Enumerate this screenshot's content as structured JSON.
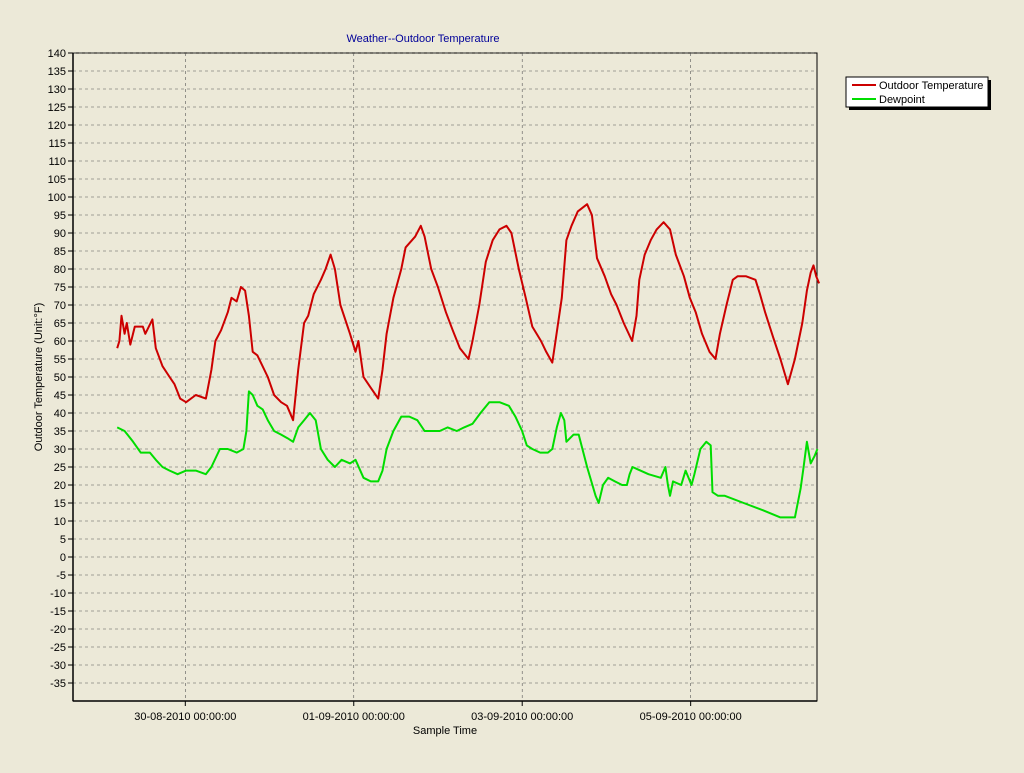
{
  "chart_data": {
    "type": "line",
    "title": "Weather--Outdoor Temperature",
    "xlabel": "Sample Time",
    "ylabel": "Outdoor Temperature (Unit:°F)",
    "ylim": [
      -40,
      140
    ],
    "xlim": [
      "2010-08-28 16:00",
      "2010-09-06 12:00"
    ],
    "y_ticks": [
      140,
      135,
      130,
      125,
      120,
      115,
      110,
      105,
      100,
      95,
      90,
      85,
      80,
      75,
      70,
      65,
      60,
      55,
      50,
      45,
      40,
      35,
      30,
      25,
      20,
      15,
      10,
      5,
      0,
      -5,
      -10,
      -15,
      -20,
      -25,
      -30,
      -35
    ],
    "x_ticks": [
      {
        "x": "2010-08-30 00:00",
        "label": "30-08-2010 00:00:00"
      },
      {
        "x": "2010-09-01 00:00",
        "label": "01-09-2010 00:00:00"
      },
      {
        "x": "2010-09-03 00:00",
        "label": "03-09-2010 00:00:00"
      },
      {
        "x": "2010-09-05 00:00",
        "label": "05-09-2010 00:00:00"
      }
    ],
    "grid": true,
    "legend_position": "top-right",
    "series": [
      {
        "name": "Outdoor Temperature",
        "color": "#cc0000",
        "points": [
          [
            "2010-08-29 04:36",
            58
          ],
          [
            "2010-08-29 05:14",
            60
          ],
          [
            "2010-08-29 05:50",
            67
          ],
          [
            "2010-08-29 06:43",
            62
          ],
          [
            "2010-08-29 07:19",
            65
          ],
          [
            "2010-08-29 08:20",
            59
          ],
          [
            "2010-08-29 09:36",
            64
          ],
          [
            "2010-08-29 11:53",
            64
          ],
          [
            "2010-08-29 12:36",
            62
          ],
          [
            "2010-08-29 14:38",
            66
          ],
          [
            "2010-08-29 15:36",
            58
          ],
          [
            "2010-08-29 17:31",
            53
          ],
          [
            "2010-08-29 19:31",
            50
          ],
          [
            "2010-08-29 20:55",
            48
          ],
          [
            "2010-08-29 22:33",
            44
          ],
          [
            "2010-08-30 00:14",
            43
          ],
          [
            "2010-08-30 03:00",
            45
          ],
          [
            "2010-08-30 05:53",
            44
          ],
          [
            "2010-08-30 07:26",
            52
          ],
          [
            "2010-08-30 08:34",
            60
          ],
          [
            "2010-08-30 10:12",
            63
          ],
          [
            "2010-08-30 12:07",
            68
          ],
          [
            "2010-08-30 13:09",
            72
          ],
          [
            "2010-08-30 14:38",
            71
          ],
          [
            "2010-08-30 15:50",
            75
          ],
          [
            "2010-08-30 17:03",
            74
          ],
          [
            "2010-08-30 18:07",
            67
          ],
          [
            "2010-08-30 19:12",
            57
          ],
          [
            "2010-08-30 20:33",
            56
          ],
          [
            "2010-08-30 23:31",
            50
          ],
          [
            "2010-08-31 01:19",
            45
          ],
          [
            "2010-08-31 03:17",
            43
          ],
          [
            "2010-08-31 04:59",
            42
          ],
          [
            "2010-08-31 06:43",
            38
          ],
          [
            "2010-08-31 08:11",
            52
          ],
          [
            "2010-08-31 09:51",
            65
          ],
          [
            "2010-08-31 11:01",
            67
          ],
          [
            "2010-08-31 12:36",
            73
          ],
          [
            "2010-08-31 14:38",
            77
          ],
          [
            "2010-08-31 15:58",
            80
          ],
          [
            "2010-08-31 17:24",
            84
          ],
          [
            "2010-08-31 18:38",
            80
          ],
          [
            "2010-08-31 20:12",
            70
          ],
          [
            "2010-08-31 22:55",
            62
          ],
          [
            "2010-09-01 00:29",
            57
          ],
          [
            "2010-09-01 01:19",
            60
          ],
          [
            "2010-09-01 02:46",
            50
          ],
          [
            "2010-09-01 04:51",
            47
          ],
          [
            "2010-09-01 06:58",
            44
          ],
          [
            "2010-09-01 08:11",
            52
          ],
          [
            "2010-09-01 09:22",
            62
          ],
          [
            "2010-09-01 11:17",
            72
          ],
          [
            "2010-09-01 13:33",
            80
          ],
          [
            "2010-09-01 14:46",
            86
          ],
          [
            "2010-09-01 17:31",
            89
          ],
          [
            "2010-09-01 19:06",
            92
          ],
          [
            "2010-09-01 20:12",
            89
          ],
          [
            "2010-09-01 22:04",
            80
          ],
          [
            "2010-09-01 23:58",
            75
          ],
          [
            "2010-09-02 02:16",
            68
          ],
          [
            "2010-09-02 04:12",
            63
          ],
          [
            "2010-09-02 06:14",
            58
          ],
          [
            "2010-09-02 08:42",
            55
          ],
          [
            "2010-09-02 09:51",
            60
          ],
          [
            "2010-09-02 11:46",
            70
          ],
          [
            "2010-09-02 13:38",
            82
          ],
          [
            "2010-09-02 15:36",
            88
          ],
          [
            "2010-09-02 17:31",
            91
          ],
          [
            "2010-09-02 19:31",
            92
          ],
          [
            "2010-09-02 20:55",
            90
          ],
          [
            "2010-09-02 23:02",
            80
          ],
          [
            "2010-09-03 00:59",
            72
          ],
          [
            "2010-09-03 02:53",
            64
          ],
          [
            "2010-09-03 05:22",
            60
          ],
          [
            "2010-09-03 06:50",
            57
          ],
          [
            "2010-09-03 08:34",
            54
          ],
          [
            "2010-09-03 09:29",
            60
          ],
          [
            "2010-09-03 11:17",
            72
          ],
          [
            "2010-09-03 12:36",
            88
          ],
          [
            "2010-09-03 14:02",
            92
          ],
          [
            "2010-09-03 15:50",
            96
          ],
          [
            "2010-09-03 18:29",
            98
          ],
          [
            "2010-09-03 19:51",
            95
          ],
          [
            "2010-09-03 21:19",
            83
          ],
          [
            "2010-09-03 23:31",
            78
          ],
          [
            "2010-09-04 01:19",
            73
          ],
          [
            "2010-09-04 02:53",
            70
          ],
          [
            "2010-09-04 04:56",
            65
          ],
          [
            "2010-09-04 07:19",
            60
          ],
          [
            "2010-09-04 08:34",
            67
          ],
          [
            "2010-09-04 09:22",
            77
          ],
          [
            "2010-09-04 10:54",
            84
          ],
          [
            "2010-09-04 12:36",
            88
          ],
          [
            "2010-09-04 14:20",
            91
          ],
          [
            "2010-09-04 16:17",
            93
          ],
          [
            "2010-09-04 18:07",
            91
          ],
          [
            "2010-09-04 19:46",
            84
          ],
          [
            "2010-09-04 22:04",
            78
          ],
          [
            "2010-09-04 23:46",
            72
          ],
          [
            "2010-09-05 01:26",
            68
          ],
          [
            "2010-09-05 03:14",
            62
          ],
          [
            "2010-09-05 05:22",
            57
          ],
          [
            "2010-09-05 07:05",
            55
          ],
          [
            "2010-09-05 08:20",
            62
          ],
          [
            "2010-09-05 10:12",
            70
          ],
          [
            "2010-09-05 12:00",
            77
          ],
          [
            "2010-09-05 13:24",
            78
          ],
          [
            "2010-09-05 15:43",
            78
          ],
          [
            "2010-09-05 18:29",
            77
          ],
          [
            "2010-09-05 19:46",
            73
          ],
          [
            "2010-09-05 21:12",
            68
          ],
          [
            "2010-09-05 23:31",
            61
          ],
          [
            "2010-09-06 01:34",
            55
          ],
          [
            "2010-09-06 03:43",
            48
          ],
          [
            "2010-09-06 05:43",
            55
          ],
          [
            "2010-09-06 07:48",
            65
          ],
          [
            "2010-09-06 09:07",
            74
          ],
          [
            "2010-09-06 10:12",
            79
          ],
          [
            "2010-09-06 11:01",
            81
          ],
          [
            "2010-09-06 11:46",
            78
          ],
          [
            "2010-09-06 12:36",
            76
          ]
        ]
      },
      {
        "name": "Dewpoint",
        "color": "#00dd00",
        "points": [
          [
            "2010-08-29 04:36",
            36
          ],
          [
            "2010-08-29 06:43",
            35
          ],
          [
            "2010-08-29 09:07",
            32
          ],
          [
            "2010-08-29 11:17",
            29
          ],
          [
            "2010-08-29 13:55",
            29
          ],
          [
            "2010-08-29 15:36",
            27
          ],
          [
            "2010-08-29 17:31",
            25
          ],
          [
            "2010-08-29 19:31",
            24
          ],
          [
            "2010-08-29 21:48",
            23
          ],
          [
            "2010-08-30 00:14",
            24
          ],
          [
            "2010-08-30 03:00",
            24
          ],
          [
            "2010-08-30 05:50",
            23
          ],
          [
            "2010-08-30 07:26",
            25
          ],
          [
            "2010-08-30 09:51",
            30
          ],
          [
            "2010-08-30 12:07",
            30
          ],
          [
            "2010-08-30 14:38",
            29
          ],
          [
            "2010-08-30 16:34",
            30
          ],
          [
            "2010-08-30 17:24",
            35
          ],
          [
            "2010-08-30 18:07",
            46
          ],
          [
            "2010-08-30 19:12",
            45
          ],
          [
            "2010-08-30 20:33",
            42
          ],
          [
            "2010-08-30 22:04",
            41
          ],
          [
            "2010-08-30 23:31",
            38
          ],
          [
            "2010-08-31 01:19",
            35
          ],
          [
            "2010-08-31 03:17",
            34
          ],
          [
            "2010-08-31 05:07",
            33
          ],
          [
            "2010-08-31 06:43",
            32
          ],
          [
            "2010-08-31 08:11",
            36
          ],
          [
            "2010-08-31 09:51",
            38
          ],
          [
            "2010-08-31 11:30",
            40
          ],
          [
            "2010-08-31 13:09",
            38
          ],
          [
            "2010-08-31 14:38",
            30
          ],
          [
            "2010-08-31 16:34",
            27
          ],
          [
            "2010-08-31 18:38",
            25
          ],
          [
            "2010-08-31 20:33",
            27
          ],
          [
            "2010-08-31 22:55",
            26
          ],
          [
            "2010-09-01 00:29",
            27
          ],
          [
            "2010-09-01 02:46",
            22
          ],
          [
            "2010-09-01 04:51",
            21
          ],
          [
            "2010-09-01 06:58",
            21
          ],
          [
            "2010-09-01 08:11",
            24
          ],
          [
            "2010-09-01 09:22",
            30
          ],
          [
            "2010-09-01 11:17",
            35
          ],
          [
            "2010-09-01 13:33",
            39
          ],
          [
            "2010-09-01 15:50",
            39
          ],
          [
            "2010-09-01 18:07",
            38
          ],
          [
            "2010-09-01 20:12",
            35
          ],
          [
            "2010-09-01 22:04",
            35
          ],
          [
            "2010-09-02 00:29",
            35
          ],
          [
            "2010-09-02 02:46",
            36
          ],
          [
            "2010-09-02 05:22",
            35
          ],
          [
            "2010-09-02 07:26",
            36
          ],
          [
            "2010-09-02 09:51",
            37
          ],
          [
            "2010-09-02 12:07",
            40
          ],
          [
            "2010-09-02 14:38",
            43
          ],
          [
            "2010-09-02 17:31",
            43
          ],
          [
            "2010-09-02 20:12",
            42
          ],
          [
            "2010-09-02 22:04",
            39
          ],
          [
            "2010-09-02 23:58",
            35
          ],
          [
            "2010-09-03 01:19",
            31
          ],
          [
            "2010-09-03 02:53",
            30
          ],
          [
            "2010-09-03 05:07",
            29
          ],
          [
            "2010-09-03 07:19",
            29
          ],
          [
            "2010-09-03 08:34",
            30
          ],
          [
            "2010-09-03 09:51",
            36
          ],
          [
            "2010-09-03 11:01",
            40
          ],
          [
            "2010-09-03 12:00",
            38
          ],
          [
            "2010-09-03 12:36",
            32
          ],
          [
            "2010-09-03 14:38",
            34
          ],
          [
            "2010-09-03 16:05",
            34
          ],
          [
            "2010-09-03 18:29",
            25
          ],
          [
            "2010-09-03 20:55",
            17
          ],
          [
            "2010-09-03 21:48",
            15
          ],
          [
            "2010-09-03 23:02",
            20
          ],
          [
            "2010-09-04 00:29",
            22
          ],
          [
            "2010-09-04 02:24",
            21
          ],
          [
            "2010-09-04 04:27",
            20
          ],
          [
            "2010-09-04 05:50",
            20
          ],
          [
            "2010-09-04 06:36",
            23
          ],
          [
            "2010-09-04 07:26",
            25
          ],
          [
            "2010-09-04 12:00",
            23
          ],
          [
            "2010-09-04 15:29",
            22
          ],
          [
            "2010-09-04 16:48",
            25
          ],
          [
            "2010-09-04 17:31",
            20
          ],
          [
            "2010-09-04 18:07",
            17
          ],
          [
            "2010-09-04 18:58",
            21
          ],
          [
            "2010-09-04 21:19",
            20
          ],
          [
            "2010-09-04 22:33",
            24
          ],
          [
            "2010-09-05 00:14",
            20
          ],
          [
            "2010-09-05 01:04",
            23
          ],
          [
            "2010-09-05 02:46",
            30
          ],
          [
            "2010-09-05 04:27",
            32
          ],
          [
            "2010-09-05 05:43",
            31
          ],
          [
            "2010-09-05 06:14",
            18
          ],
          [
            "2010-09-05 07:48",
            17
          ],
          [
            "2010-09-05 09:43",
            17
          ],
          [
            "2010-09-05 15:07",
            15
          ],
          [
            "2010-09-05 20:33",
            13
          ],
          [
            "2010-09-06 01:34",
            11
          ],
          [
            "2010-09-06 05:43",
            11
          ],
          [
            "2010-09-06 07:19",
            19
          ],
          [
            "2010-09-06 08:11",
            25
          ],
          [
            "2010-09-06 09:07",
            32
          ],
          [
            "2010-09-06 10:12",
            26
          ],
          [
            "2010-09-06 11:17",
            28
          ],
          [
            "2010-09-06 12:07",
            30
          ]
        ]
      }
    ]
  }
}
